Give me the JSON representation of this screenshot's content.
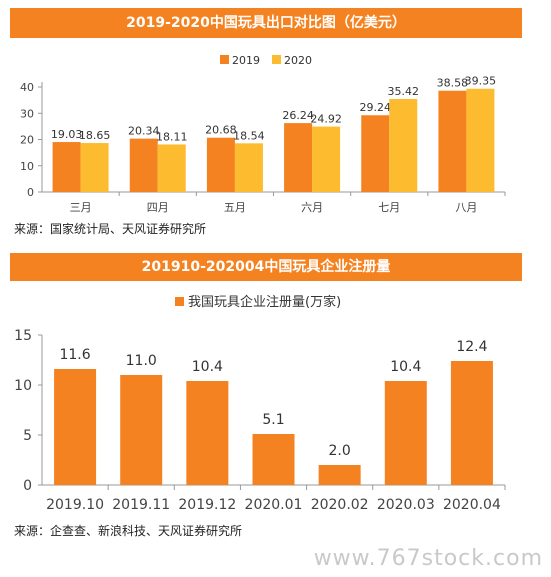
{
  "chart_data": [
    {
      "type": "bar",
      "title": "2019-2020中国玩具出口对比图（亿美元）",
      "categories": [
        "三月",
        "四月",
        "五月",
        "六月",
        "七月",
        "八月"
      ],
      "series": [
        {
          "name": "2019",
          "values": [
            19.03,
            20.34,
            20.68,
            26.24,
            29.24,
            38.58
          ],
          "color": "#f58220"
        },
        {
          "name": "2020",
          "values": [
            18.65,
            18.11,
            18.54,
            24.92,
            35.42,
            39.35
          ],
          "color": "#fdbb2f"
        }
      ],
      "ylim": [
        0,
        40
      ],
      "yticks": [
        0,
        10,
        20,
        30,
        40
      ],
      "legend": "top",
      "source": "来源：国家统计局、天风证券研究所"
    },
    {
      "type": "bar",
      "title": "201910-202004中国玩具企业注册量",
      "categories": [
        "2019.10",
        "2019.11",
        "2019.12",
        "2020.01",
        "2020.02",
        "2020.03",
        "2020.04"
      ],
      "series": [
        {
          "name": "我国玩具企业注册量(万家)",
          "values": [
            11.6,
            11.0,
            10.4,
            5.1,
            2.0,
            10.4,
            12.4
          ],
          "color": "#f58220"
        }
      ],
      "ylim": [
        0,
        15
      ],
      "yticks": [
        0,
        5,
        10,
        15
      ],
      "legend": "top",
      "source": "来源：企查查、新浪科技、天风证券研究所"
    }
  ],
  "watermark": "www.767stock.com"
}
